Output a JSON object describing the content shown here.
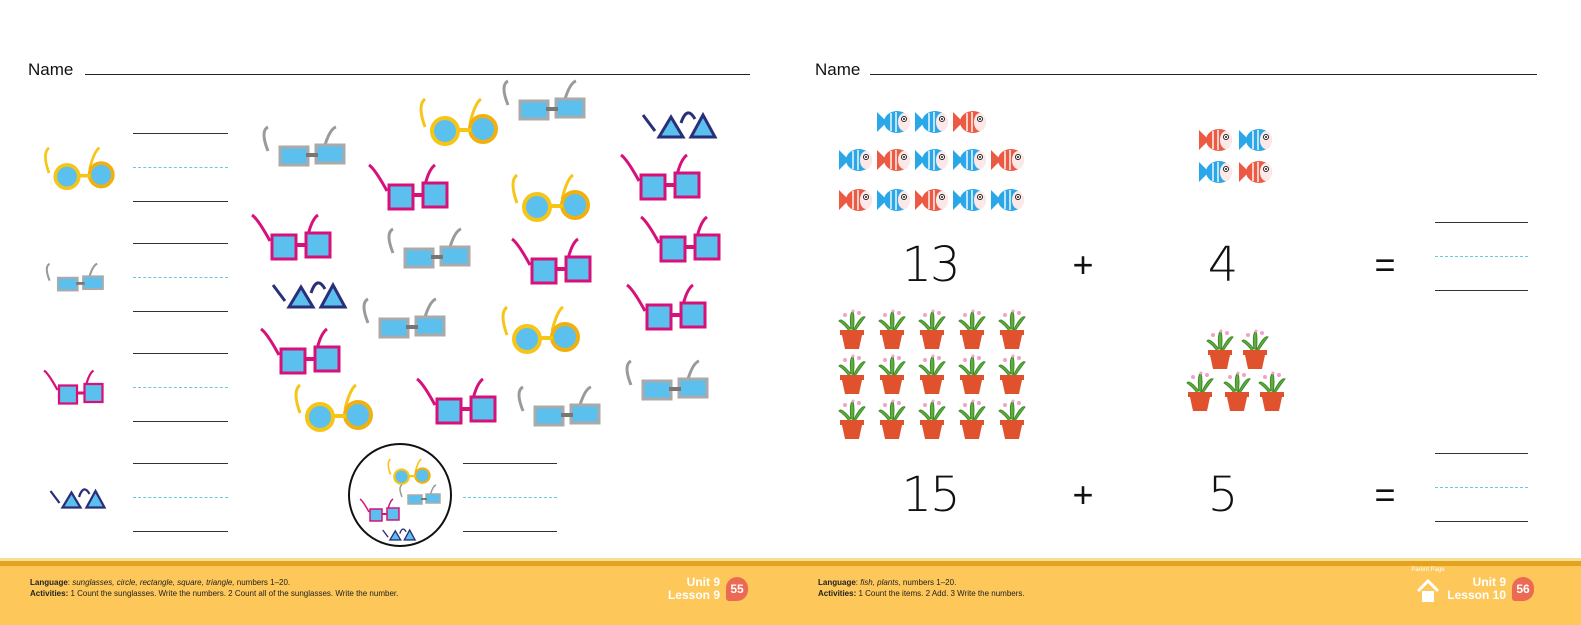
{
  "left_page": {
    "name_label": "Name",
    "legend": [
      "round",
      "rectangle",
      "square",
      "triangle"
    ],
    "footer": {
      "language_label": "Language",
      "language_text": "sunglasses, circle, rectangle, square, triangle,",
      "language_tail": " numbers 1–20.",
      "activities_label": "Activities:",
      "activities_text": " 1 Count the sunglasses. Write the numbers. 2 Count all of the sunglasses. Write the number.",
      "unit": "Unit 9",
      "lesson": "Lesson 9",
      "page_number": "55"
    }
  },
  "right_page": {
    "name_label": "Name",
    "problem1": {
      "a": "13",
      "plus": "+",
      "b": "4",
      "equals": "="
    },
    "problem2": {
      "a": "15",
      "plus": "+",
      "b": "5",
      "equals": "="
    },
    "footer": {
      "language_label": "Language",
      "language_text": "fish, plants,",
      "language_tail": " numbers 1–20.",
      "activities_label": "Activities:",
      "activities_text": " 1 Count the items. 2 Add. 3 Write the numbers.",
      "parent_page": "Parent Page",
      "unit": "Unit 9",
      "lesson": "Lesson 10",
      "page_number": "56"
    }
  },
  "colors": {
    "yellow_glasses": "#f5c518",
    "pink_glasses": "#d6127a",
    "gray_glasses": "#9a9a9a",
    "navy_glasses": "#2a2f7a",
    "lens": "#5bc0ee",
    "fish_blue": "#2aa7e8",
    "fish_red": "#ec5a44",
    "pot": "#e0522e",
    "footer": "#fdc75a",
    "badge": "#ec6a53"
  }
}
